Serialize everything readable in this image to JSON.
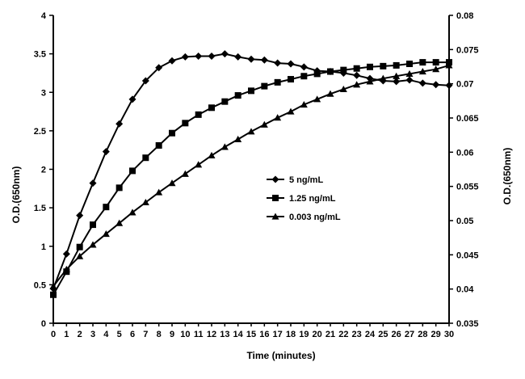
{
  "chart_data": {
    "type": "line",
    "title": "",
    "xlabel": "Time (minutes)",
    "ylabel_left": "O.D.(650nm)",
    "ylabel_right": "O.D.(650nm)",
    "x": [
      0,
      1,
      2,
      3,
      4,
      5,
      6,
      7,
      8,
      9,
      10,
      11,
      12,
      13,
      14,
      15,
      16,
      17,
      18,
      19,
      20,
      21,
      22,
      23,
      24,
      25,
      26,
      27,
      28,
      29,
      30
    ],
    "xlim": [
      0,
      30
    ],
    "ylim_left": [
      0,
      4
    ],
    "ylim_right": [
      0.035,
      0.08
    ],
    "left_ticks": [
      "0",
      "0.5",
      "1",
      "1.5",
      "2",
      "2.5",
      "3",
      "3.5",
      "4"
    ],
    "right_ticks": [
      "0.035",
      "0.04",
      "0.045",
      "0.05",
      "0.055",
      "0.06",
      "0.065",
      "0.07",
      "0.075",
      "0.08"
    ],
    "x_ticks": [
      "0",
      "1",
      "2",
      "3",
      "4",
      "5",
      "6",
      "7",
      "8",
      "9",
      "10",
      "11",
      "12",
      "13",
      "14",
      "15",
      "16",
      "17",
      "18",
      "19",
      "20",
      "21",
      "22",
      "23",
      "24",
      "25",
      "26",
      "27",
      "28",
      "29",
      "30"
    ],
    "legend_position": "center",
    "series": [
      {
        "name": "5 ng/mL",
        "axis": "left",
        "marker": "diamond",
        "values": [
          0.45,
          0.9,
          1.4,
          1.82,
          2.23,
          2.59,
          2.91,
          3.15,
          3.32,
          3.41,
          3.46,
          3.47,
          3.47,
          3.5,
          3.46,
          3.43,
          3.42,
          3.38,
          3.37,
          3.33,
          3.28,
          3.27,
          3.25,
          3.22,
          3.18,
          3.15,
          3.14,
          3.16,
          3.12,
          3.1,
          3.09
        ]
      },
      {
        "name": "1.25 ng/mL",
        "axis": "left",
        "marker": "square",
        "values": [
          0.37,
          0.67,
          0.99,
          1.28,
          1.51,
          1.76,
          1.98,
          2.15,
          2.31,
          2.47,
          2.6,
          2.71,
          2.8,
          2.88,
          2.96,
          3.02,
          3.08,
          3.13,
          3.17,
          3.21,
          3.24,
          3.27,
          3.29,
          3.31,
          3.33,
          3.34,
          3.35,
          3.37,
          3.39,
          3.39,
          3.39
        ]
      },
      {
        "name": "0.003 ng/mL",
        "axis": "left",
        "marker": "triangle",
        "values": [
          0.48,
          0.7,
          0.87,
          1.02,
          1.16,
          1.3,
          1.44,
          1.57,
          1.7,
          1.82,
          1.94,
          2.06,
          2.18,
          2.29,
          2.39,
          2.49,
          2.58,
          2.67,
          2.75,
          2.84,
          2.91,
          2.98,
          3.04,
          3.1,
          3.14,
          3.18,
          3.21,
          3.24,
          3.27,
          3.3,
          3.35
        ]
      }
    ]
  }
}
